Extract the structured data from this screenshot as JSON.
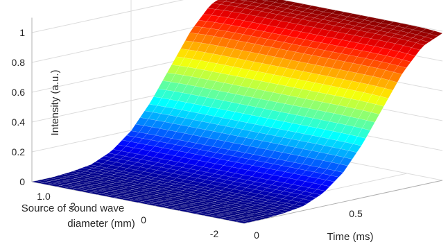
{
  "chart_data": {
    "type": "surface",
    "title": "",
    "zlabel": "Intensity (a.u.)",
    "ylabel": "Source of sound wave diameter (mm)",
    "ylabel_lines": [
      "Source of sound wave",
      "diameter (mm)"
    ],
    "xlabel": "Time (ms)",
    "z_ticks": [
      "0",
      "0.2",
      "0.4",
      "0.6",
      "0.8",
      "1"
    ],
    "z_tick_values": [
      0,
      0.2,
      0.4,
      0.6,
      0.8,
      1
    ],
    "y_ticks": [
      "2",
      "0",
      "-2"
    ],
    "y_tick_values": [
      2,
      0,
      -2
    ],
    "x_ticks": [
      "0",
      "0.5",
      "1.0"
    ],
    "x_tick_values": [
      0,
      0.5,
      1.0
    ],
    "other_visible_labels": [
      "1.0"
    ],
    "zlim": [
      0,
      1
    ],
    "xlim": [
      0,
      1.0
    ],
    "ylim": [
      -3,
      3
    ],
    "surface": {
      "description_function": "Gaussian pulse in time peaking at t=1.0 ms with peak intensity 1, nearly constant across diameter",
      "time_samples": [
        0,
        0.1,
        0.2,
        0.3,
        0.4,
        0.5,
        0.6,
        0.7,
        0.8,
        0.9,
        1.0
      ],
      "intensity_at_time": [
        0.0,
        0.0,
        0.01,
        0.03,
        0.09,
        0.2,
        0.37,
        0.58,
        0.79,
        0.94,
        1.0
      ]
    },
    "colormap": "jet",
    "colors": [
      "#00007f",
      "#0000ff",
      "#007fff",
      "#00ffff",
      "#7fff7f",
      "#ffff00",
      "#ff7f00",
      "#ff0000",
      "#7f0000"
    ],
    "grid": true,
    "legend": "none"
  }
}
